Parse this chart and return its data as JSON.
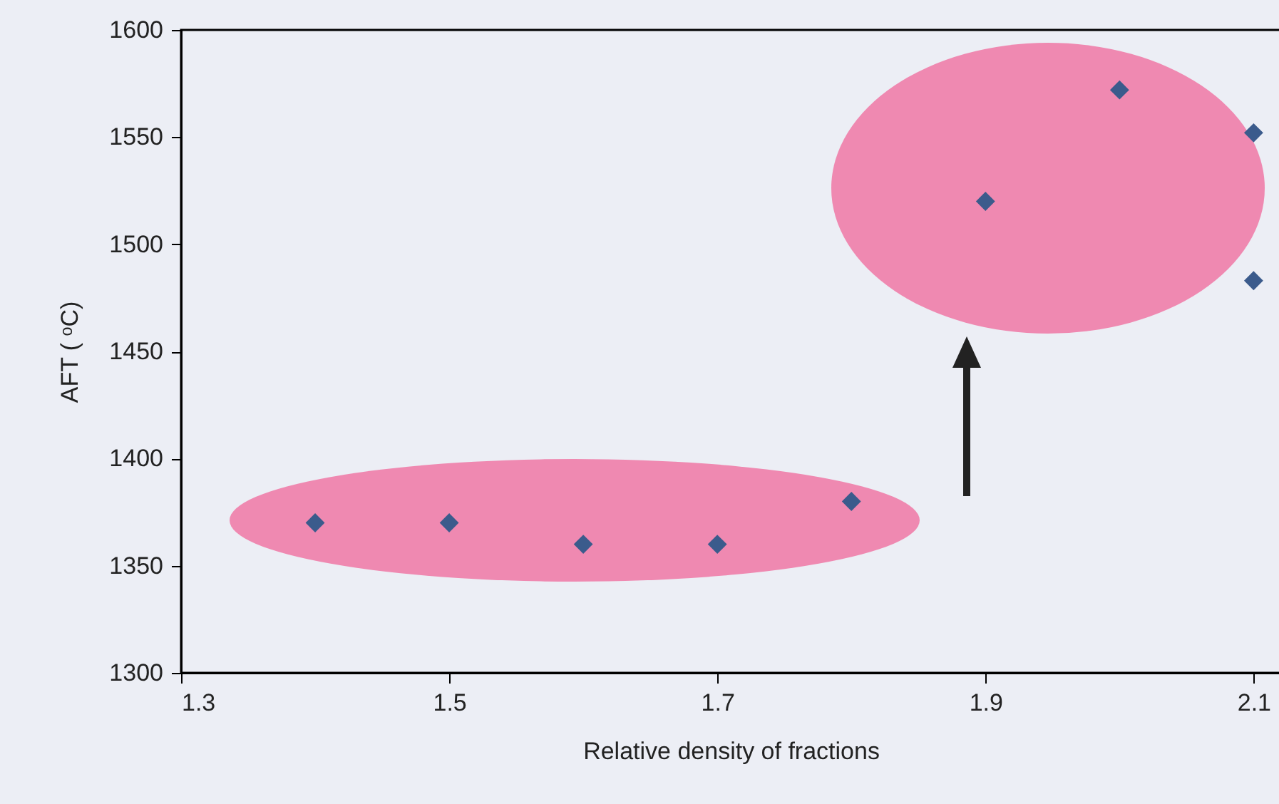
{
  "chart_data": {
    "type": "scatter",
    "xlabel": "Relative density of fractions",
    "ylabel": "AFT ( ᵒC)",
    "x": [
      1.4,
      1.5,
      1.6,
      1.7,
      1.8,
      1.9,
      2.0,
      2.1,
      2.1
    ],
    "series": [
      {
        "color": "#3b5b8c",
        "values": [
          1370,
          1370,
          1360,
          1360,
          1380,
          1520,
          1572,
          1552,
          1483
        ]
      }
    ],
    "marker": "diamond",
    "xlim": [
      1.3,
      2.12
    ],
    "xticks": [
      1.3,
      1.5,
      1.7,
      1.9,
      2.1
    ],
    "ylim": [
      1300,
      1600
    ],
    "yticks": [
      1300,
      1350,
      1400,
      1450,
      1500,
      1550,
      1600
    ],
    "grid": false,
    "legend": false
  }
}
